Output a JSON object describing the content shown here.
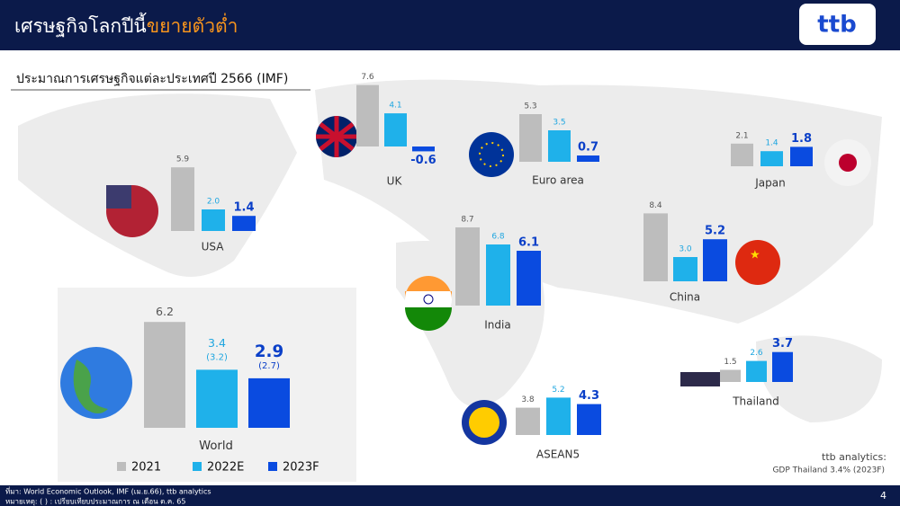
{
  "header": {
    "title_main": "เศรษฐกิจโลกปีนี้",
    "title_highlight": "ขยายตัวต่ำ",
    "logo": "ttb"
  },
  "subtitle": "ประมาณการเศรษฐกิจแต่ละประเทศปี 2566 (IMF)",
  "legend": {
    "labels": [
      "2021",
      "2022E",
      "2023F"
    ],
    "colors": [
      "#bdbdbd",
      "#1fb1ea",
      "#0a4be0"
    ]
  },
  "chart_data": [
    {
      "type": "bar",
      "title": "USA",
      "values": [
        5.9,
        2.0,
        1.4
      ],
      "value_labels": [
        "5.9",
        "2.0",
        "1.4"
      ]
    },
    {
      "type": "bar",
      "title": "UK",
      "values": [
        7.6,
        4.1,
        -0.6
      ]
    },
    {
      "type": "bar",
      "title": "Euro area",
      "values": [
        5.3,
        3.5,
        0.7
      ]
    },
    {
      "type": "bar",
      "title": "Japan",
      "values": [
        2.1,
        1.4,
        1.8
      ]
    },
    {
      "type": "bar",
      "title": "India",
      "values": [
        8.7,
        6.8,
        6.1
      ]
    },
    {
      "type": "bar",
      "title": "China",
      "values": [
        8.4,
        3.0,
        5.2
      ],
      "value_labels": [
        "8.4",
        "3.0",
        "5.2"
      ]
    },
    {
      "type": "bar",
      "title": "Thailand",
      "values": [
        1.5,
        2.6,
        3.7
      ]
    },
    {
      "type": "bar",
      "title": "ASEAN5",
      "values": [
        3.8,
        5.2,
        4.3
      ]
    },
    {
      "type": "bar",
      "title": "World",
      "values": [
        6.2,
        3.4,
        2.9
      ],
      "previous": {
        "values": [
          null,
          3.2,
          2.7
        ],
        "value_labels": [
          null,
          "(3.2)",
          "(2.7)"
        ]
      }
    }
  ],
  "note": {
    "line1": "ttb analytics:",
    "line2": "GDP Thailand 3.4% (2023F)"
  },
  "footer": {
    "source": "ที่มา: World Economic Outlook, IMF (เม.ย.66), ttb analytics",
    "remark": "หมายเหตุ: ( ) : เปรียบเทียบประมาณการ ณ เดือน ต.ค. 65",
    "page": 4
  }
}
